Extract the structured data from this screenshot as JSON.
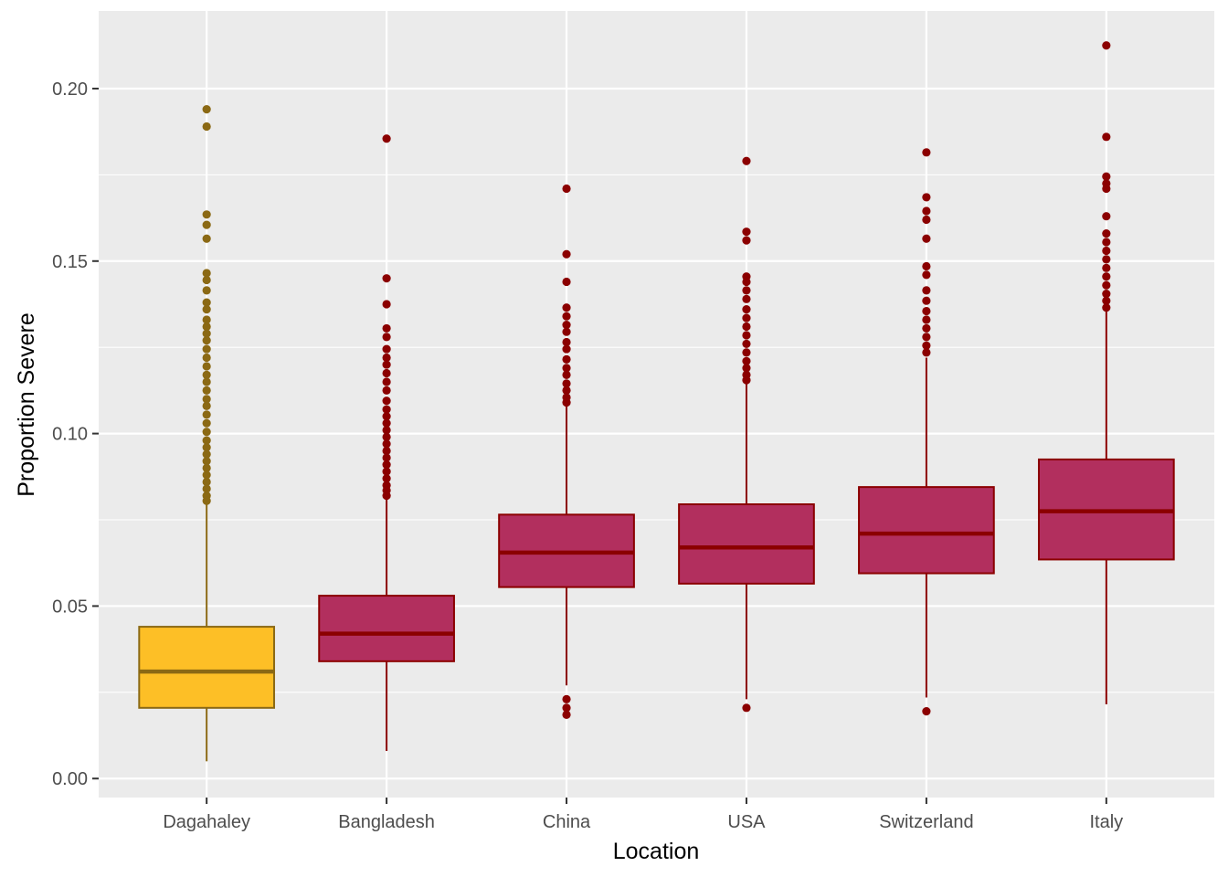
{
  "chart_data": {
    "type": "boxplot",
    "title": "",
    "xlabel": "Location",
    "ylabel": "Proportion Severe",
    "ylim": [
      -0.0055,
      0.2225
    ],
    "yticks": [
      0.0,
      0.05,
      0.1,
      0.15,
      0.2
    ],
    "ytick_labels": [
      "0.00",
      "0.05",
      "0.10",
      "0.15",
      "0.20"
    ],
    "y_minor_ticks": [
      0.025,
      0.075,
      0.125,
      0.175
    ],
    "grid": true,
    "legend": "none",
    "panel_color": "#ebebeb",
    "grid_color": "#ffffff",
    "categories": [
      "Dagahaley",
      "Bangladesh",
      "China",
      "USA",
      "Switzerland",
      "Italy"
    ],
    "boxes": [
      {
        "category": "Dagahaley",
        "fill": "#fdbf26",
        "line": "#8b6914",
        "lower_whisker": 0.005,
        "q1": 0.0205,
        "median": 0.031,
        "q3": 0.044,
        "upper_whisker": 0.0795,
        "outliers": [
          0.194,
          0.189,
          0.1635,
          0.1605,
          0.1565,
          0.1465,
          0.1445,
          0.1415,
          0.138,
          0.136,
          0.133,
          0.131,
          0.129,
          0.127,
          0.1245,
          0.122,
          0.1195,
          0.117,
          0.115,
          0.1125,
          0.11,
          0.108,
          0.1055,
          0.103,
          0.1005,
          0.098,
          0.096,
          0.094,
          0.092,
          0.09,
          0.088,
          0.086,
          0.084,
          0.082,
          0.0805
        ]
      },
      {
        "category": "Bangladesh",
        "fill": "#b22f5e",
        "line": "#8b0000",
        "lower_whisker": 0.008,
        "q1": 0.034,
        "median": 0.042,
        "q3": 0.053,
        "upper_whisker": 0.081,
        "outliers": [
          0.1855,
          0.145,
          0.1375,
          0.1305,
          0.128,
          0.1245,
          0.122,
          0.12,
          0.1175,
          0.115,
          0.1125,
          0.1095,
          0.107,
          0.105,
          0.103,
          0.101,
          0.099,
          0.097,
          0.095,
          0.093,
          0.091,
          0.089,
          0.087,
          0.085,
          0.0835,
          0.082
        ]
      },
      {
        "category": "China",
        "fill": "#b22f5e",
        "line": "#8b0000",
        "lower_whisker": 0.027,
        "q1": 0.0555,
        "median": 0.0655,
        "q3": 0.0765,
        "upper_whisker": 0.108,
        "outliers": [
          0.171,
          0.152,
          0.144,
          0.1365,
          0.134,
          0.1315,
          0.1295,
          0.1265,
          0.1245,
          0.1215,
          0.119,
          0.117,
          0.1145,
          0.1125,
          0.1105,
          0.109,
          0.023,
          0.0205,
          0.0185
        ]
      },
      {
        "category": "USA",
        "fill": "#b22f5e",
        "line": "#8b0000",
        "lower_whisker": 0.023,
        "q1": 0.0565,
        "median": 0.067,
        "q3": 0.0795,
        "upper_whisker": 0.1145,
        "outliers": [
          0.179,
          0.1585,
          0.156,
          0.1455,
          0.144,
          0.1415,
          0.139,
          0.136,
          0.1335,
          0.131,
          0.1285,
          0.126,
          0.1235,
          0.121,
          0.119,
          0.117,
          0.1155,
          0.0205
        ]
      },
      {
        "category": "Switzerland",
        "fill": "#b22f5e",
        "line": "#8b0000",
        "lower_whisker": 0.0235,
        "q1": 0.0595,
        "median": 0.071,
        "q3": 0.0845,
        "upper_whisker": 0.122,
        "outliers": [
          0.1815,
          0.1685,
          0.1645,
          0.162,
          0.1565,
          0.1485,
          0.146,
          0.1415,
          0.1385,
          0.1355,
          0.133,
          0.1305,
          0.128,
          0.1255,
          0.1235,
          0.0195
        ]
      },
      {
        "category": "Italy",
        "fill": "#b22f5e",
        "line": "#8b0000",
        "lower_whisker": 0.0215,
        "q1": 0.0635,
        "median": 0.0775,
        "q3": 0.0925,
        "upper_whisker": 0.1355,
        "outliers": [
          0.2125,
          0.186,
          0.1745,
          0.1725,
          0.171,
          0.163,
          0.158,
          0.1555,
          0.153,
          0.1505,
          0.148,
          0.1455,
          0.143,
          0.1405,
          0.1385,
          0.1365
        ]
      }
    ]
  }
}
